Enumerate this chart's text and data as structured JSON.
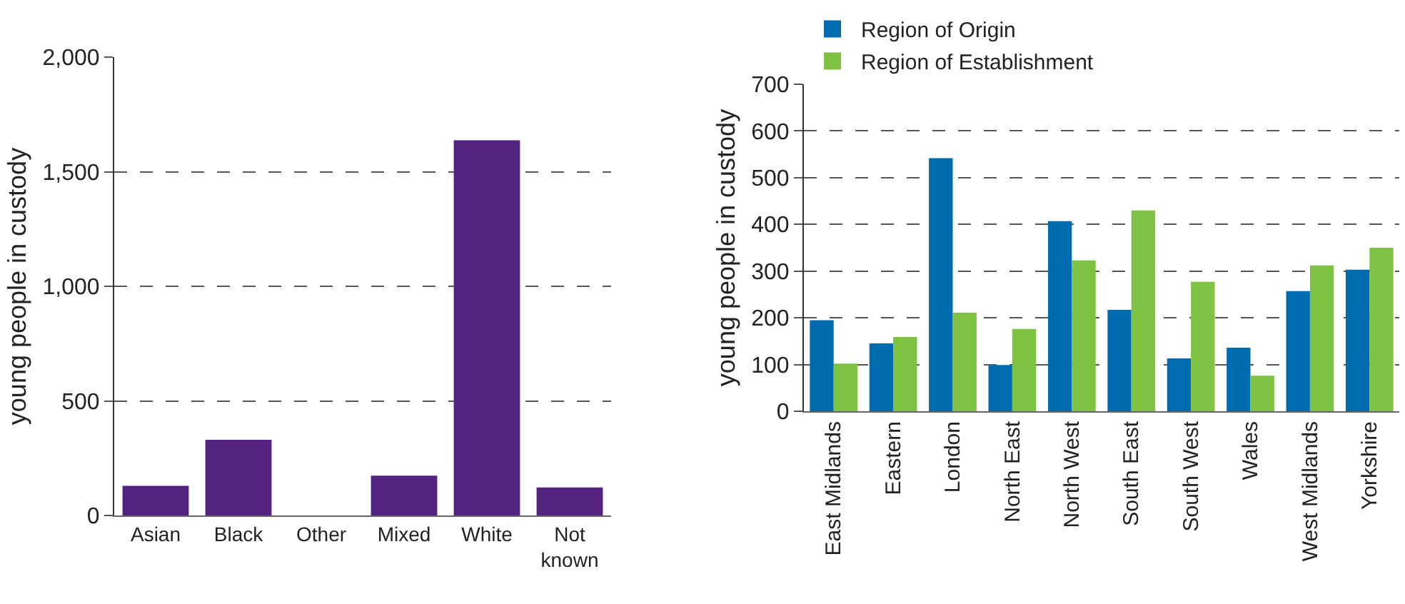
{
  "chart_data": [
    {
      "type": "bar",
      "ylabel": "young people in custody",
      "categories": [
        "Asian",
        "Black",
        "Other",
        "Mixed",
        "White",
        "Not known"
      ],
      "series": [
        {
          "color": "#52237f",
          "values": [
            129,
            330,
            0,
            174,
            1637,
            122
          ]
        }
      ],
      "ylim": [
        0,
        2000
      ],
      "yticks": [
        0,
        500,
        {
          "value": 1000,
          "label": "1,000"
        },
        {
          "value": 1500,
          "label": "1,500"
        },
        {
          "value": 2000,
          "label": "2,000"
        }
      ],
      "grid": "y",
      "legend": false
    },
    {
      "type": "bar",
      "ylabel": "young people in custody",
      "categories": [
        "East Midlands",
        "Eastern",
        "London",
        "North East",
        "North West",
        "South East",
        "South West",
        "Wales",
        "West Midlands",
        "Yorkshire"
      ],
      "series": [
        {
          "name": "Region of Origin",
          "color": "#006cb0",
          "values": [
            195,
            145,
            542,
            99,
            407,
            217,
            113,
            136,
            257,
            303
          ]
        },
        {
          "name": "Region of Establishment",
          "color": "#7dc243",
          "values": [
            102,
            159,
            211,
            176,
            323,
            430,
            277,
            76,
            312,
            350
          ]
        }
      ],
      "ylim": [
        0,
        700
      ],
      "yticks": [
        0,
        100,
        200,
        300,
        400,
        500,
        600,
        700
      ],
      "grid": "y",
      "legend": "top"
    }
  ]
}
